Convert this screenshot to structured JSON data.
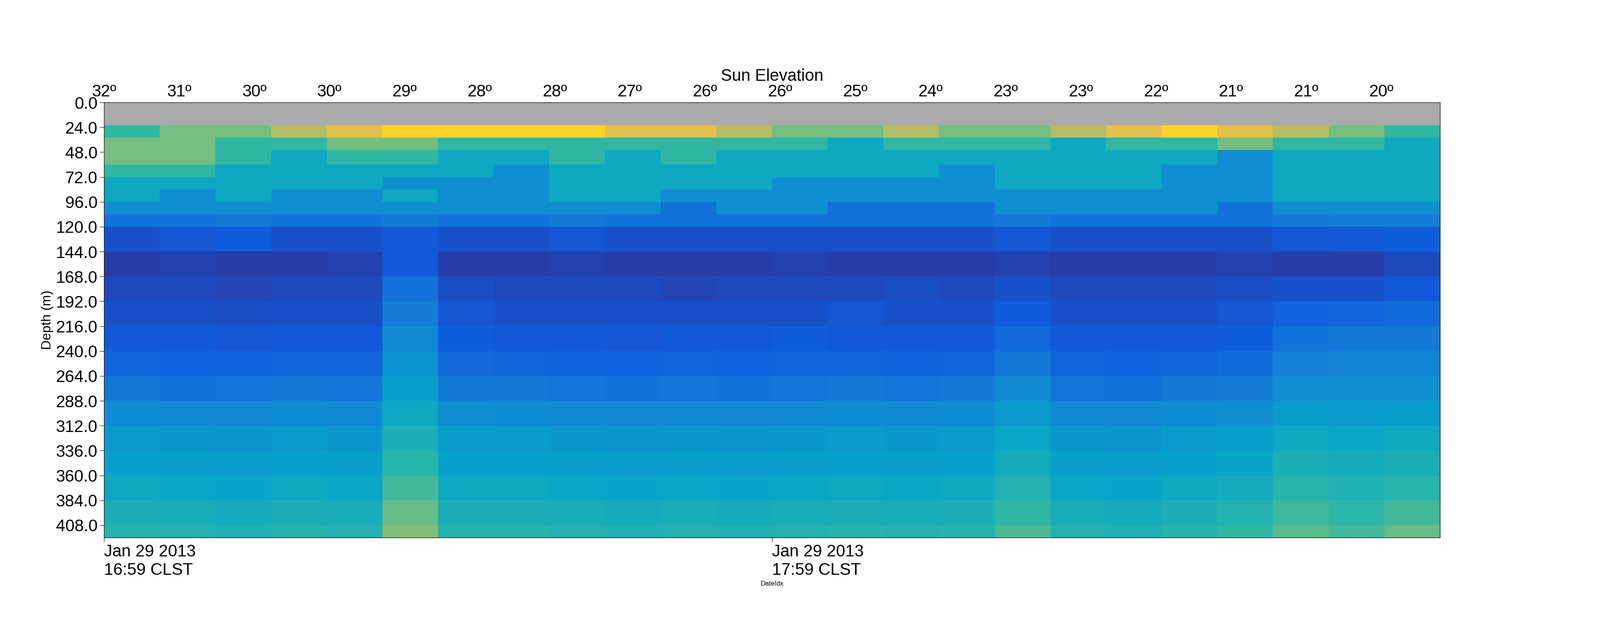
{
  "chart_data": {
    "type": "heatmap",
    "x_label": "DateIdx",
    "y_label": "Depth (m)",
    "top_axis": {
      "label": "Sun Elevation",
      "ticks": [
        {
          "value": 0,
          "label": "32º"
        },
        {
          "value": 6.75,
          "label": "31º"
        },
        {
          "value": 13.5,
          "label": "30º"
        },
        {
          "value": 20.25,
          "label": "30º"
        },
        {
          "value": 27,
          "label": "29º"
        },
        {
          "value": 33.75,
          "label": "28º"
        },
        {
          "value": 40.5,
          "label": "28º"
        },
        {
          "value": 47.25,
          "label": "27º"
        },
        {
          "value": 54,
          "label": "26º"
        },
        {
          "value": 60.75,
          "label": "26º"
        },
        {
          "value": 67.5,
          "label": "25º"
        },
        {
          "value": 74.25,
          "label": "24º"
        },
        {
          "value": 81,
          "label": "23º"
        },
        {
          "value": 87.75,
          "label": "23º"
        },
        {
          "value": 94.5,
          "label": "22º"
        },
        {
          "value": 101.25,
          "label": "21º"
        },
        {
          "value": 108,
          "label": "21º"
        },
        {
          "value": 114.75,
          "label": "20º"
        }
      ]
    },
    "xlim": [
      0,
      120
    ],
    "xticks": [
      {
        "value": 0,
        "label": "Jan 29 2013\n16:59 CLST"
      },
      {
        "value": 60,
        "label": "Jan 29 2013\n17:59 CLST"
      }
    ],
    "ylim": [
      420,
      0
    ],
    "yticks": [
      {
        "value": 0,
        "label": "0.0"
      },
      {
        "value": 24,
        "label": "24.0"
      },
      {
        "value": 48,
        "label": "48.0"
      },
      {
        "value": 72,
        "label": "72.0"
      },
      {
        "value": 96,
        "label": "96.0"
      },
      {
        "value": 120,
        "label": "120.0"
      },
      {
        "value": 144,
        "label": "144.0"
      },
      {
        "value": 168,
        "label": "168.0"
      },
      {
        "value": 192,
        "label": "192.0"
      },
      {
        "value": 216,
        "label": "216.0"
      },
      {
        "value": 240,
        "label": "240.0"
      },
      {
        "value": 264,
        "label": "264.0"
      },
      {
        "value": 288,
        "label": "288.0"
      },
      {
        "value": 312,
        "label": "312.0"
      },
      {
        "value": 336,
        "label": "336.0"
      },
      {
        "value": 360,
        "label": "360.0"
      },
      {
        "value": 384,
        "label": "384.0"
      },
      {
        "value": 408,
        "label": "408.0"
      }
    ],
    "color_range": [
      0,
      10
    ],
    "x_edges": [
      0,
      5,
      10,
      15,
      20,
      25,
      30,
      35,
      40,
      45,
      50,
      55,
      60,
      65,
      70,
      75,
      80,
      85,
      90,
      95,
      100,
      105,
      110,
      115,
      120
    ],
    "y_edges": [
      0,
      22,
      34,
      46,
      60,
      72,
      84,
      96,
      108,
      120,
      144,
      168,
      192,
      216,
      240,
      264,
      288,
      312,
      336,
      360,
      384,
      408,
      420
    ],
    "cells": [
      [
        null,
        null,
        null,
        null,
        null,
        null,
        null,
        null,
        null,
        null,
        null,
        null,
        null,
        null,
        null,
        null,
        null,
        null,
        null,
        null,
        null,
        null,
        null,
        null
      ],
      [
        5,
        6,
        6,
        7,
        8,
        9,
        9,
        9,
        9,
        8,
        8,
        7,
        6,
        6,
        7,
        6,
        6,
        7,
        8,
        9,
        8,
        7,
        6,
        5
      ],
      [
        6,
        6,
        5,
        5,
        6,
        6,
        5,
        5,
        5,
        5,
        5,
        5,
        5,
        4,
        5,
        5,
        5,
        4,
        5,
        5,
        6,
        5,
        5,
        4
      ],
      [
        6,
        6,
        5,
        4,
        5,
        5,
        4,
        4,
        5,
        4,
        5,
        4,
        4,
        4,
        4,
        4,
        4,
        4,
        4,
        4,
        3,
        4,
        4,
        4
      ],
      [
        5,
        5,
        4,
        4,
        4,
        4,
        4,
        3,
        4,
        4,
        4,
        4,
        4,
        4,
        4,
        3,
        4,
        4,
        4,
        3,
        3,
        4,
        4,
        4
      ],
      [
        4,
        4,
        4,
        4,
        4,
        3,
        3,
        3,
        4,
        4,
        4,
        4,
        3,
        3,
        3,
        3,
        4,
        4,
        4,
        3,
        3,
        4,
        4,
        4
      ],
      [
        4,
        3,
        4,
        3,
        3,
        4,
        3,
        3,
        4,
        4,
        3,
        3,
        3,
        3,
        3,
        3,
        3,
        3,
        3,
        3,
        3,
        4,
        4,
        4
      ],
      [
        3,
        3,
        3,
        3,
        3,
        3,
        3,
        3,
        3,
        3,
        2,
        3,
        3,
        2,
        2,
        2,
        3,
        3,
        3,
        3,
        2,
        3,
        3,
        3
      ],
      [
        2,
        2,
        2.2,
        2,
        2,
        2.3,
        2,
        2,
        2.2,
        2,
        2,
        2,
        2,
        2,
        2,
        2,
        2.2,
        2,
        2,
        2,
        2,
        2.2,
        2.4,
        2.4
      ],
      [
        1,
        1.1,
        1.3,
        1,
        1,
        1.2,
        1,
        1,
        1.1,
        1,
        1,
        1,
        1,
        1,
        1,
        1,
        1.1,
        1,
        1,
        1,
        1,
        1.1,
        1.2,
        1.3
      ],
      [
        0.5,
        0.6,
        0.5,
        0.5,
        0.6,
        1.2,
        0.5,
        0.5,
        0.6,
        0.5,
        0.5,
        0.5,
        0.6,
        0.5,
        0.5,
        0.5,
        0.6,
        0.5,
        0.5,
        0.5,
        0.6,
        0.5,
        0.5,
        0.8
      ],
      [
        0.8,
        0.8,
        0.7,
        0.8,
        0.8,
        2.0,
        0.9,
        0.8,
        0.8,
        0.8,
        0.7,
        0.8,
        0.8,
        0.8,
        0.9,
        0.8,
        1.0,
        0.8,
        0.8,
        0.8,
        0.9,
        1.0,
        1.0,
        1.2
      ],
      [
        1.0,
        1.0,
        0.9,
        1.0,
        1.0,
        2.4,
        1.1,
        1.0,
        1.0,
        1.0,
        1.0,
        1.0,
        1.0,
        1.1,
        1.0,
        1.0,
        1.3,
        1.0,
        1.0,
        1.0,
        1.1,
        1.5,
        1.6,
        1.8
      ],
      [
        1.2,
        1.2,
        1.1,
        1.2,
        1.2,
        2.8,
        1.3,
        1.2,
        1.2,
        1.1,
        1.2,
        1.2,
        1.3,
        1.2,
        1.2,
        1.2,
        1.7,
        1.2,
        1.2,
        1.2,
        1.3,
        2.0,
        2.2,
        2.2
      ],
      [
        1.6,
        1.5,
        1.5,
        1.6,
        1.6,
        3.2,
        1.7,
        1.6,
        1.5,
        1.5,
        1.6,
        1.5,
        1.6,
        1.6,
        1.5,
        1.6,
        2.2,
        1.6,
        1.5,
        1.6,
        1.8,
        2.5,
        2.6,
        2.6
      ],
      [
        2.2,
        2.0,
        2.1,
        2.2,
        2.1,
        3.6,
        2.3,
        2.2,
        2.1,
        2.0,
        2.1,
        2.0,
        2.1,
        2.2,
        2.1,
        2.2,
        2.8,
        2.1,
        2.0,
        2.2,
        2.4,
        3.0,
        3.0,
        3.0
      ],
      [
        2.9,
        2.8,
        2.8,
        2.9,
        2.8,
        4.0,
        3.0,
        2.9,
        2.8,
        2.8,
        2.8,
        2.7,
        2.8,
        2.9,
        2.8,
        2.9,
        3.4,
        2.8,
        2.8,
        2.9,
        3.0,
        3.5,
        3.4,
        3.5
      ],
      [
        3.4,
        3.3,
        3.2,
        3.4,
        3.3,
        4.4,
        3.4,
        3.4,
        3.3,
        3.2,
        3.3,
        3.2,
        3.3,
        3.4,
        3.3,
        3.4,
        3.9,
        3.3,
        3.2,
        3.4,
        3.5,
        4.0,
        3.9,
        4.0
      ],
      [
        3.7,
        3.6,
        3.5,
        3.7,
        3.6,
        4.8,
        3.7,
        3.7,
        3.6,
        3.5,
        3.6,
        3.5,
        3.6,
        3.7,
        3.6,
        3.7,
        4.2,
        3.6,
        3.5,
        3.7,
        3.8,
        4.4,
        4.2,
        4.4
      ],
      [
        4.0,
        3.9,
        3.8,
        4.0,
        3.9,
        5.3,
        4.0,
        4.0,
        3.9,
        3.8,
        3.9,
        3.8,
        3.9,
        4.0,
        3.9,
        4.0,
        4.6,
        3.9,
        3.8,
        4.0,
        4.2,
        4.8,
        4.5,
        4.8
      ],
      [
        4.4,
        4.3,
        4.2,
        4.4,
        4.3,
        5.8,
        4.4,
        4.4,
        4.3,
        4.2,
        4.3,
        4.2,
        4.3,
        4.4,
        4.3,
        4.4,
        5.0,
        4.3,
        4.2,
        4.4,
        4.6,
        5.2,
        4.9,
        5.3
      ],
      [
        4.7,
        4.6,
        4.5,
        4.7,
        4.6,
        6.2,
        4.7,
        4.7,
        4.6,
        4.5,
        4.6,
        4.5,
        4.6,
        4.7,
        4.6,
        4.7,
        5.4,
        4.6,
        4.5,
        4.7,
        5.0,
        5.6,
        5.3,
        5.8
      ]
    ]
  }
}
